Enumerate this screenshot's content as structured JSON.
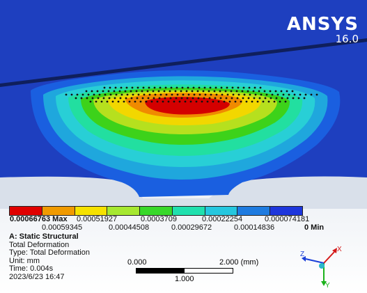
{
  "logo": {
    "name": "ANSYS",
    "version": "16.0"
  },
  "colors": {
    "background": "#c0c0c0",
    "model_dark_blue": "#1e3fbf",
    "bands": [
      "#d40000",
      "#f08a00",
      "#f2d700",
      "#b6e01e",
      "#3dd21a",
      "#22dfa0",
      "#28cfd6",
      "#1fa7dd",
      "#1a5fe0"
    ]
  },
  "legend": {
    "swatches": [
      "#e00000",
      "#f09a00",
      "#f6e200",
      "#a6e830",
      "#38d82a",
      "#20e0ae",
      "#25c7df",
      "#1e7be0",
      "#1d36dc"
    ],
    "top_labels": [
      "0.00066763 Max",
      "0.00051927",
      "0.0003709",
      "0.00022254",
      "0.000074181"
    ],
    "bottom_labels": [
      "0.00059345",
      "0.00044508",
      "0.00029672",
      "0.00014836",
      "0 Min"
    ]
  },
  "info": {
    "analysis": "A: Static Structural",
    "result": "Total Deformation",
    "type": "Type: Total Deformation",
    "unit": "Unit: mm",
    "time": "Time: 0.004s",
    "date": "2023/6/23 16:47"
  },
  "scale_bar": {
    "left": "0.000",
    "right": "2.000 (mm)",
    "mid": "1.000"
  },
  "triad": {
    "x": "X",
    "y": "Y",
    "z": "Z"
  }
}
